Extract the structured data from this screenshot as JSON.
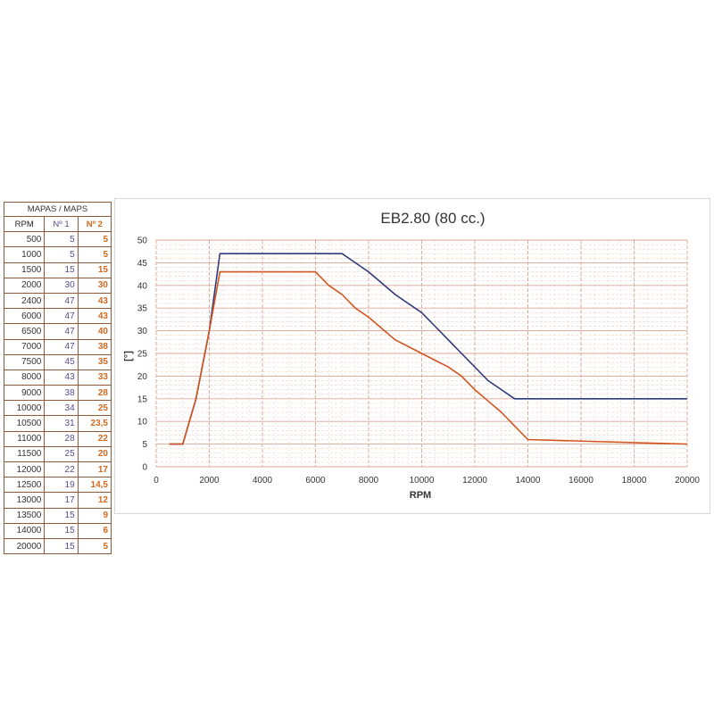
{
  "table": {
    "title": "MAPAS / MAPS",
    "headers": [
      "RPM",
      "Nº 1",
      "Nº 2"
    ],
    "rows": [
      [
        "500",
        "5",
        "5"
      ],
      [
        "1000",
        "5",
        "5"
      ],
      [
        "1500",
        "15",
        "15"
      ],
      [
        "2000",
        "30",
        "30"
      ],
      [
        "2400",
        "47",
        "43"
      ],
      [
        "6000",
        "47",
        "43"
      ],
      [
        "6500",
        "47",
        "40"
      ],
      [
        "7000",
        "47",
        "38"
      ],
      [
        "7500",
        "45",
        "35"
      ],
      [
        "8000",
        "43",
        "33"
      ],
      [
        "9000",
        "38",
        "28"
      ],
      [
        "10000",
        "34",
        "25"
      ],
      [
        "10500",
        "31",
        "23,5"
      ],
      [
        "11000",
        "28",
        "22"
      ],
      [
        "11500",
        "25",
        "20"
      ],
      [
        "12000",
        "22",
        "17"
      ],
      [
        "12500",
        "19",
        "14,5"
      ],
      [
        "13000",
        "17",
        "12"
      ],
      [
        "13500",
        "15",
        "9"
      ],
      [
        "14000",
        "15",
        "6"
      ],
      [
        "20000",
        "15",
        "5"
      ]
    ]
  },
  "colors": {
    "map1": "#2e3a7a",
    "map2": "#d2541e",
    "grid_major": "#d9a593",
    "grid_minor": "#ecd3c8"
  },
  "chart_data": {
    "type": "line",
    "title": "EB2.80 (80 cc.)",
    "xlabel": "RPM",
    "ylabel": "[°]",
    "xlim": [
      0,
      20000
    ],
    "ylim": [
      0,
      50
    ],
    "xticks": [
      0,
      2000,
      4000,
      6000,
      8000,
      10000,
      12000,
      14000,
      16000,
      18000,
      20000
    ],
    "yticks": [
      0,
      5,
      10,
      15,
      20,
      25,
      30,
      35,
      40,
      45,
      50
    ],
    "grid": true,
    "x": [
      500,
      1000,
      1500,
      2000,
      2400,
      6000,
      6500,
      7000,
      7500,
      8000,
      9000,
      10000,
      10500,
      11000,
      11500,
      12000,
      12500,
      13000,
      13500,
      14000,
      20000
    ],
    "series": [
      {
        "values": [
          5,
          5,
          15,
          30,
          47,
          47,
          47,
          47,
          45,
          43,
          38,
          34,
          31,
          28,
          25,
          22,
          19,
          17,
          15,
          15,
          15
        ],
        "color": "#2e3a7a"
      },
      {
        "values": [
          5,
          5,
          15,
          30,
          43,
          43,
          40,
          38,
          35,
          33,
          28,
          25,
          23.5,
          22,
          20,
          17,
          14.5,
          12,
          9,
          6,
          5
        ],
        "color": "#d2541e"
      }
    ]
  }
}
